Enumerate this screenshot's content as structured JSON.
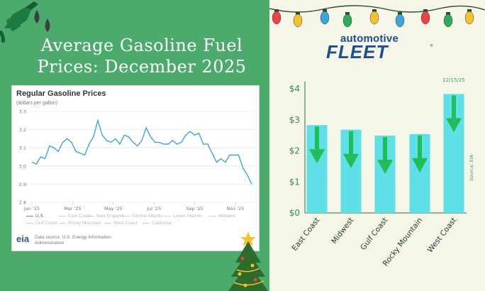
{
  "title_line1": "Average Gasoline Fuel",
  "title_line2": "Prices: December 2025",
  "brand": {
    "line1": "automotive",
    "line2": "FLEET",
    "tm": "®"
  },
  "colors": {
    "left_bg": "#4caa6d",
    "right_bg": "#f5f5ea",
    "bar": "#5ee0e6",
    "arrow": "#1fbe5a",
    "line": "#2f9fd2",
    "brand": "#1b4f8f"
  },
  "eia": {
    "title": "Regular Gasoline Prices",
    "unit": "(dollars per gallon)",
    "source": "Data source: U.S. Energy Information Administration",
    "logo": "eia",
    "legend": [
      "U.S.",
      "East Coast",
      "New England",
      "Central Atlantic",
      "Lower Atlantic",
      "Midwest",
      "Gulf Coast",
      "Rocky Mountain",
      "West Coast",
      "California"
    ]
  },
  "chart_data": [
    {
      "type": "line",
      "title": "Regular Gasoline Prices",
      "ylabel": "(dollars per gallon)",
      "ylim": [
        2.8,
        3.3
      ],
      "y_ticks": [
        "2.8",
        "2.9",
        "3.0",
        "3.1",
        "3.2",
        "3.3"
      ],
      "x_tick_labels": [
        "Jan '25",
        "Mar '25",
        "May '25",
        "Jul '25",
        "Sep '25",
        "Nov '25"
      ],
      "grid": true,
      "legend_position": "bottom",
      "series": [
        {
          "name": "U.S.",
          "values": [
            3.02,
            3.01,
            3.05,
            3.04,
            3.11,
            3.1,
            3.08,
            3.13,
            3.15,
            3.13,
            3.08,
            3.07,
            3.06,
            3.12,
            3.16,
            3.25,
            3.17,
            3.14,
            3.13,
            3.15,
            3.12,
            3.17,
            3.16,
            3.13,
            3.11,
            3.14,
            3.21,
            3.16,
            3.13,
            3.13,
            3.12,
            3.12,
            3.14,
            3.12,
            3.13,
            3.17,
            3.19,
            3.17,
            3.18,
            3.12,
            3.12,
            3.07,
            3.02,
            3.04,
            3.02,
            3.06,
            3.06,
            3.06,
            2.99,
            2.95,
            2.9
          ]
        }
      ]
    },
    {
      "type": "bar",
      "categories": [
        "East Coast",
        "Midwest",
        "Gulf Coast",
        "Rocky Mountain",
        "West Coast"
      ],
      "values": [
        2.83,
        2.68,
        2.49,
        2.54,
        3.83
      ],
      "ylim": [
        0,
        4
      ],
      "y_ticks": [
        "$0",
        "$1",
        "$2",
        "$3",
        "$4"
      ],
      "trend": [
        "down",
        "down",
        "down",
        "down",
        "down"
      ],
      "annotations": [
        "12/15/25",
        "Source: EIA"
      ],
      "grid": false
    }
  ]
}
